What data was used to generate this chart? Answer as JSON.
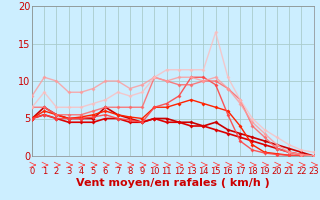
{
  "background_color": "#cceeff",
  "grid_color": "#aacccc",
  "xlabel": "Vent moyen/en rafales ( km/h )",
  "xlim": [
    0,
    23
  ],
  "ylim": [
    0,
    20
  ],
  "yticks": [
    0,
    5,
    10,
    15,
    20
  ],
  "xticks": [
    0,
    1,
    2,
    3,
    4,
    5,
    6,
    7,
    8,
    9,
    10,
    11,
    12,
    13,
    14,
    15,
    16,
    17,
    18,
    19,
    20,
    21,
    22,
    23
  ],
  "series": [
    {
      "x": [
        0,
        1,
        2,
        3,
        4,
        5,
        6,
        7,
        8,
        9,
        10,
        11,
        12,
        13,
        14,
        15,
        16,
        17,
        18,
        19,
        20,
        21,
        22,
        23
      ],
      "y": [
        5.0,
        6.5,
        5.5,
        5.0,
        5.0,
        5.0,
        6.5,
        5.5,
        5.0,
        4.5,
        5.0,
        5.0,
        4.5,
        4.5,
        4.0,
        4.5,
        3.5,
        3.0,
        2.5,
        2.0,
        1.5,
        1.0,
        0.5,
        0.0
      ],
      "color": "#cc0000",
      "linewidth": 1.2,
      "marker": "D",
      "markersize": 2.0,
      "alpha": 1.0
    },
    {
      "x": [
        0,
        1,
        2,
        3,
        4,
        5,
        6,
        7,
        8,
        9,
        10,
        11,
        12,
        13,
        14,
        15,
        16,
        17,
        18,
        19,
        20,
        21,
        22,
        23
      ],
      "y": [
        5.0,
        5.5,
        5.0,
        4.5,
        4.5,
        4.5,
        5.0,
        5.0,
        4.5,
        4.5,
        5.0,
        4.5,
        4.5,
        4.0,
        4.0,
        3.5,
        3.0,
        2.5,
        2.0,
        1.5,
        1.0,
        0.5,
        0.2,
        0.0
      ],
      "color": "#dd0000",
      "linewidth": 1.2,
      "marker": "D",
      "markersize": 2.0,
      "alpha": 1.0
    },
    {
      "x": [
        0,
        1,
        2,
        3,
        4,
        5,
        6,
        7,
        8,
        9,
        10,
        11,
        12,
        13,
        14,
        15,
        16,
        17,
        18,
        19,
        20,
        21,
        22,
        23
      ],
      "y": [
        5.0,
        6.0,
        5.5,
        5.0,
        5.2,
        5.5,
        6.0,
        5.5,
        5.2,
        5.0,
        6.5,
        6.5,
        7.0,
        7.5,
        7.0,
        6.5,
        6.0,
        4.0,
        1.5,
        0.5,
        0.3,
        0.1,
        0.05,
        0.0
      ],
      "color": "#ff2200",
      "linewidth": 1.0,
      "marker": "D",
      "markersize": 2.0,
      "alpha": 1.0
    },
    {
      "x": [
        0,
        1,
        2,
        3,
        4,
        5,
        6,
        7,
        8,
        9,
        10,
        11,
        12,
        13,
        14,
        15,
        16,
        17,
        18,
        19,
        20,
        21,
        22,
        23
      ],
      "y": [
        5.0,
        5.5,
        5.0,
        5.0,
        5.0,
        5.2,
        5.5,
        5.0,
        4.8,
        4.5,
        6.5,
        7.0,
        8.0,
        10.5,
        10.5,
        9.5,
        5.5,
        2.0,
        0.8,
        0.4,
        0.2,
        0.1,
        0.05,
        0.0
      ],
      "color": "#ff4444",
      "linewidth": 1.0,
      "marker": "D",
      "markersize": 2.0,
      "alpha": 0.9
    },
    {
      "x": [
        0,
        1,
        2,
        3,
        4,
        5,
        6,
        7,
        8,
        9,
        10,
        11,
        12,
        13,
        14,
        15,
        16,
        17,
        18,
        19,
        20,
        21,
        22,
        23
      ],
      "y": [
        6.5,
        6.5,
        5.5,
        5.5,
        5.5,
        6.0,
        6.5,
        6.5,
        6.5,
        6.5,
        10.5,
        10.0,
        9.5,
        9.5,
        10.0,
        10.0,
        9.0,
        7.5,
        4.0,
        2.5,
        1.0,
        0.5,
        0.2,
        0.0
      ],
      "color": "#ff6666",
      "linewidth": 1.0,
      "marker": "D",
      "markersize": 2.0,
      "alpha": 0.85
    },
    {
      "x": [
        0,
        1,
        2,
        3,
        4,
        5,
        6,
        7,
        8,
        9,
        10,
        11,
        12,
        13,
        14,
        15,
        16,
        17,
        18,
        19,
        20,
        21,
        22,
        23
      ],
      "y": [
        8.0,
        10.5,
        10.0,
        8.5,
        8.5,
        9.0,
        10.0,
        10.0,
        9.0,
        9.5,
        10.5,
        10.0,
        10.5,
        10.5,
        10.0,
        10.5,
        9.0,
        7.0,
        4.5,
        3.0,
        1.5,
        0.5,
        0.2,
        0.0
      ],
      "color": "#ff9999",
      "linewidth": 1.0,
      "marker": "D",
      "markersize": 2.0,
      "alpha": 0.8
    },
    {
      "x": [
        0,
        1,
        2,
        3,
        4,
        5,
        6,
        7,
        8,
        9,
        10,
        11,
        12,
        13,
        14,
        15,
        16,
        17,
        18,
        19,
        20,
        21,
        22,
        23
      ],
      "y": [
        6.5,
        8.5,
        6.5,
        6.5,
        6.5,
        7.0,
        7.5,
        8.5,
        8.0,
        8.5,
        10.5,
        11.5,
        11.5,
        11.5,
        11.5,
        16.5,
        10.5,
        7.5,
        5.0,
        3.5,
        2.5,
        1.5,
        0.8,
        0.5
      ],
      "color": "#ffbbbb",
      "linewidth": 1.0,
      "marker": "D",
      "markersize": 2.0,
      "alpha": 0.75
    }
  ],
  "arrow_color": "#ff4444",
  "xlabel_color": "#cc0000",
  "xlabel_fontsize": 8,
  "tick_color": "#cc0000",
  "tick_fontsize": 6,
  "ylabel_tick_fontsize": 7
}
